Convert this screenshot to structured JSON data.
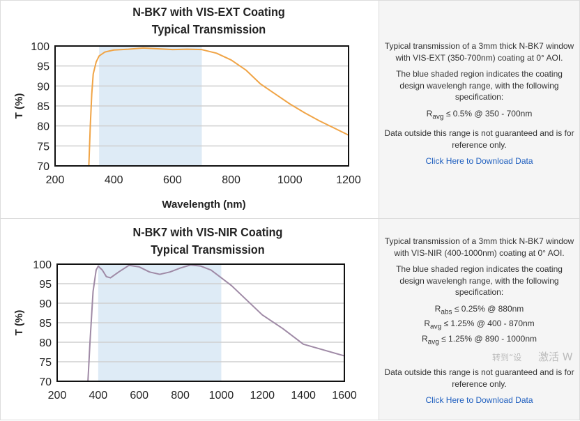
{
  "chart_data": [
    {
      "type": "line",
      "title": [
        "N-BK7 with VIS-EXT Coating",
        "Typical Transmission"
      ],
      "xlabel": "Wavelength (nm)",
      "ylabel": "T (%)",
      "xlim": [
        200,
        1200
      ],
      "ylim": [
        70,
        100
      ],
      "xticks": [
        200,
        400,
        600,
        800,
        1000,
        1200
      ],
      "yticks": [
        70,
        75,
        80,
        85,
        90,
        95,
        100
      ],
      "grid": true,
      "shaded_region": [
        350,
        700
      ],
      "shade_color": "#deebf6",
      "line_color": "#f0a446",
      "x": [
        315,
        320,
        325,
        330,
        340,
        350,
        370,
        400,
        450,
        500,
        550,
        600,
        650,
        700,
        750,
        800,
        850,
        900,
        950,
        1000,
        1050,
        1100,
        1150,
        1200
      ],
      "y": [
        70,
        80,
        88,
        93,
        96,
        97.5,
        98.5,
        99,
        99.2,
        99.5,
        99.3,
        99.1,
        99.2,
        99.1,
        98.2,
        96.5,
        94,
        90.5,
        88,
        85.5,
        83.3,
        81.3,
        79.5,
        77.7
      ]
    },
    {
      "type": "line",
      "title": [
        "N-BK7 with VIS-NIR Coating",
        "Typical Transmission"
      ],
      "xlabel": "",
      "ylabel": "T (%)",
      "xlim": [
        200,
        1600
      ],
      "ylim": [
        70,
        100
      ],
      "xticks": [
        200,
        400,
        600,
        800,
        1000,
        1200,
        1400,
        1600
      ],
      "yticks": [
        70,
        75,
        80,
        85,
        90,
        95,
        100
      ],
      "grid": true,
      "shaded_region": [
        400,
        1000
      ],
      "shade_color": "#deebf6",
      "line_color": "#9f8aa6",
      "x": [
        350,
        360,
        375,
        390,
        400,
        420,
        440,
        460,
        500,
        550,
        600,
        650,
        700,
        750,
        800,
        850,
        900,
        950,
        1000,
        1050,
        1100,
        1150,
        1200,
        1300,
        1400,
        1500,
        1600
      ],
      "y": [
        70,
        80,
        93,
        98.5,
        99.5,
        98.5,
        96.8,
        96.5,
        98,
        99.7,
        99.3,
        98,
        97.4,
        98,
        99,
        99.8,
        99.5,
        98.5,
        96.5,
        94.5,
        92,
        89.5,
        87,
        83.5,
        79.5,
        78,
        76.5
      ]
    }
  ],
  "info": [
    {
      "desc": "Typical transmission of a 3mm thick N-BK7 window with VIS-EXT (350-700nm) coating at 0° AOI.",
      "shade_note": "The blue shaded region indicates the coating design wavelengh range, with the following specification:",
      "specs": [
        {
          "sym": "R",
          "sub": "avg",
          "text": "≤ 0.5% @ 350 - 700nm"
        }
      ],
      "disclaimer": "Data outside this range is not guaranteed and is for reference only.",
      "link": "Click Here to Download Data"
    },
    {
      "desc": "Typical transmission of a 3mm thick N-BK7 window with VIS-NIR (400-1000nm) coating at 0° AOI.",
      "shade_note": "The blue shaded region indicates the coating design wavelengh range, with the following specification:",
      "specs": [
        {
          "sym": "R",
          "sub": "abs",
          "text": "≤ 0.25% @ 880nm"
        },
        {
          "sym": "R",
          "sub": "avg",
          "text": "≤ 1.25% @ 400 - 870nm"
        },
        {
          "sym": "R",
          "sub": "avg",
          "text": "≤ 1.25% @ 890 - 1000nm"
        }
      ],
      "disclaimer": "Data outside this range is not guaranteed and is for reference only.",
      "link": "Click Here to Download Data"
    }
  ],
  "watermark": [
    "激活 W",
    "转到“设"
  ]
}
